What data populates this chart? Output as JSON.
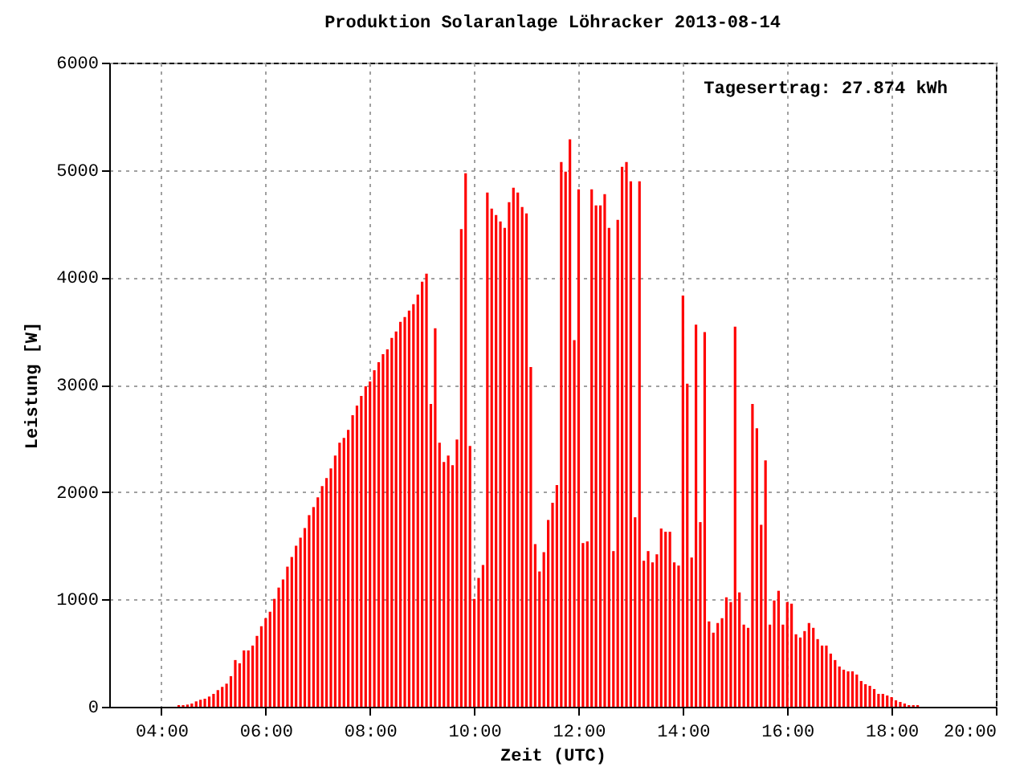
{
  "chart_data": {
    "type": "bar",
    "title": "Produktion Solaranlage Löhracker 2013-08-14",
    "xlabel": "Zeit (UTC)",
    "ylabel": "Leistung [W]",
    "annotations": [
      "Tagesertrag: 27.874 kWh"
    ],
    "x": [
      4.333,
      4.417,
      4.5,
      4.583,
      4.667,
      4.75,
      4.833,
      4.917,
      5,
      5.083,
      5.167,
      5.25,
      5.333,
      5.417,
      5.5,
      5.583,
      5.667,
      5.75,
      5.833,
      5.917,
      6,
      6.083,
      6.167,
      6.25,
      6.333,
      6.417,
      6.5,
      6.583,
      6.667,
      6.75,
      6.833,
      6.917,
      7,
      7.083,
      7.167,
      7.25,
      7.333,
      7.417,
      7.5,
      7.583,
      7.667,
      7.75,
      7.833,
      7.917,
      8,
      8.083,
      8.167,
      8.25,
      8.333,
      8.417,
      8.5,
      8.583,
      8.667,
      8.75,
      8.833,
      8.917,
      9,
      9.083,
      9.167,
      9.25,
      9.333,
      9.417,
      9.5,
      9.583,
      9.667,
      9.75,
      9.833,
      9.917,
      10,
      10.083,
      10.167,
      10.25,
      10.333,
      10.417,
      10.5,
      10.583,
      10.667,
      10.75,
      10.833,
      10.917,
      11,
      11.083,
      11.167,
      11.25,
      11.333,
      11.417,
      11.5,
      11.583,
      11.667,
      11.75,
      11.833,
      11.917,
      12,
      12.083,
      12.167,
      12.25,
      12.333,
      12.417,
      12.5,
      12.583,
      12.667,
      12.75,
      12.833,
      12.917,
      13,
      13.083,
      13.167,
      13.25,
      13.333,
      13.417,
      13.5,
      13.583,
      13.667,
      13.75,
      13.833,
      13.917,
      14,
      14.083,
      14.167,
      14.25,
      14.333,
      14.417,
      14.5,
      14.583,
      14.667,
      14.75,
      14.833,
      14.917,
      15,
      15.083,
      15.167,
      15.25,
      15.333,
      15.417,
      15.5,
      15.583,
      15.667,
      15.75,
      15.833,
      15.917,
      16,
      16.083,
      16.167,
      16.25,
      16.333,
      16.417,
      16.5,
      16.583,
      16.667,
      16.75,
      16.833,
      16.917,
      17,
      17.083,
      17.167,
      17.25,
      17.333,
      17.417,
      17.5,
      17.583,
      17.667,
      17.75,
      17.833,
      17.917,
      18,
      18.083,
      18.167,
      18.25,
      18.333,
      18.417,
      18.5
    ],
    "values": [
      15,
      15,
      20,
      30,
      50,
      65,
      75,
      95,
      120,
      155,
      185,
      215,
      285,
      435,
      405,
      525,
      525,
      570,
      660,
      750,
      825,
      885,
      1005,
      1110,
      1185,
      1305,
      1395,
      1500,
      1575,
      1665,
      1785,
      1860,
      1950,
      2055,
      2130,
      2220,
      2340,
      2460,
      2505,
      2580,
      2715,
      2805,
      2895,
      2985,
      3030,
      3135,
      3210,
      3285,
      3330,
      3435,
      3495,
      3585,
      3630,
      3690,
      3750,
      3840,
      3960,
      4035,
      2820,
      3525,
      2460,
      2280,
      2340,
      2250,
      2490,
      4450,
      4970,
      2430,
      1005,
      1200,
      1320,
      4790,
      4640,
      4580,
      4520,
      4460,
      4700,
      4835,
      4790,
      4655,
      4595,
      3165,
      1515,
      1260,
      1440,
      1740,
      1900,
      2065,
      5075,
      4985,
      5285,
      3415,
      4820,
      1525,
      1540,
      4820,
      4670,
      4670,
      4775,
      4460,
      1450,
      4535,
      5030,
      5075,
      4895,
      1765,
      4895,
      1360,
      1450,
      1345,
      1420,
      1660,
      1630,
      1630,
      1345,
      1315,
      3830,
      3010,
      1390,
      3560,
      1720,
      3490,
      795,
      690,
      780,
      825,
      1020,
      975,
      3540,
      1065,
      765,
      735,
      2820,
      2595,
      1695,
      2295,
      765,
      990,
      1080,
      765,
      975,
      960,
      675,
      645,
      705,
      780,
      735,
      630,
      570,
      570,
      495,
      435,
      375,
      345,
      330,
      330,
      300,
      240,
      210,
      195,
      165,
      120,
      120,
      105,
      90,
      60,
      45,
      30,
      15,
      15,
      15
    ],
    "color": "#ff0000",
    "xlim": [
      3,
      20
    ],
    "xticks": [
      {
        "value": 4,
        "label": "04:00"
      },
      {
        "value": 6,
        "label": "06:00"
      },
      {
        "value": 8,
        "label": "08:00"
      },
      {
        "value": 10,
        "label": "10:00"
      },
      {
        "value": 12,
        "label": "12:00"
      },
      {
        "value": 14,
        "label": "14:00"
      },
      {
        "value": 16,
        "label": "16:00"
      },
      {
        "value": 18,
        "label": "18:00"
      },
      {
        "value": 20,
        "label": "20:00"
      }
    ],
    "ylim": [
      0,
      6000
    ],
    "yticks": [
      0,
      1000,
      2000,
      3000,
      4000,
      5000,
      6000
    ],
    "grid": true
  }
}
